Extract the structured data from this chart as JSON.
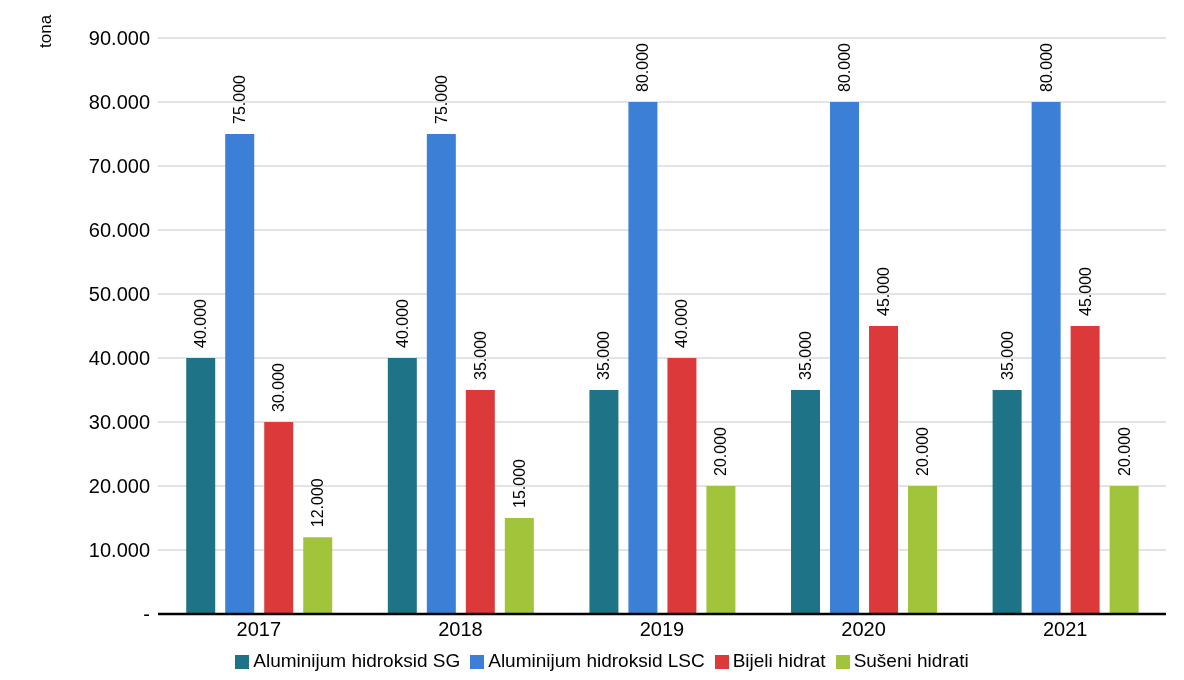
{
  "chart_data": {
    "type": "bar",
    "ylabel": "tona",
    "categories": [
      "2017",
      "2018",
      "2019",
      "2020",
      "2021"
    ],
    "series": [
      {
        "name": "Aluminijum hidroksid SG",
        "color": "#1f7387",
        "values": [
          40000,
          40000,
          35000,
          35000,
          35000
        ],
        "value_labels": [
          "40.000",
          "40.000",
          "35.000",
          "35.000",
          "35.000"
        ]
      },
      {
        "name": "Aluminijum hidroksid LSC",
        "color": "#3c7fd6",
        "values": [
          75000,
          75000,
          80000,
          80000,
          80000
        ],
        "value_labels": [
          "75.000",
          "75.000",
          "80.000",
          "80.000",
          "80.000"
        ]
      },
      {
        "name": "Bijeli hidrat",
        "color": "#dc3a3a",
        "values": [
          30000,
          35000,
          40000,
          45000,
          45000
        ],
        "value_labels": [
          "30.000",
          "35.000",
          "40.000",
          "45.000",
          "45.000"
        ]
      },
      {
        "name": "Sušeni hidrati",
        "color": "#a2c43a",
        "values": [
          12000,
          15000,
          20000,
          20000,
          20000
        ],
        "value_labels": [
          "12.000",
          "15.000",
          "20.000",
          "20.000",
          "20.000"
        ]
      }
    ],
    "ylim": [
      0,
      90000
    ],
    "yticks": [
      {
        "value": 0,
        "label": "-"
      },
      {
        "value": 10000,
        "label": "10.000"
      },
      {
        "value": 20000,
        "label": "20.000"
      },
      {
        "value": 30000,
        "label": "30.000"
      },
      {
        "value": 40000,
        "label": "40.000"
      },
      {
        "value": 50000,
        "label": "50.000"
      },
      {
        "value": 60000,
        "label": "60.000"
      },
      {
        "value": 70000,
        "label": "70.000"
      },
      {
        "value": 80000,
        "label": "80.000"
      },
      {
        "value": 90000,
        "label": "90.000"
      }
    ],
    "grid": "y",
    "legend": "bottom"
  }
}
